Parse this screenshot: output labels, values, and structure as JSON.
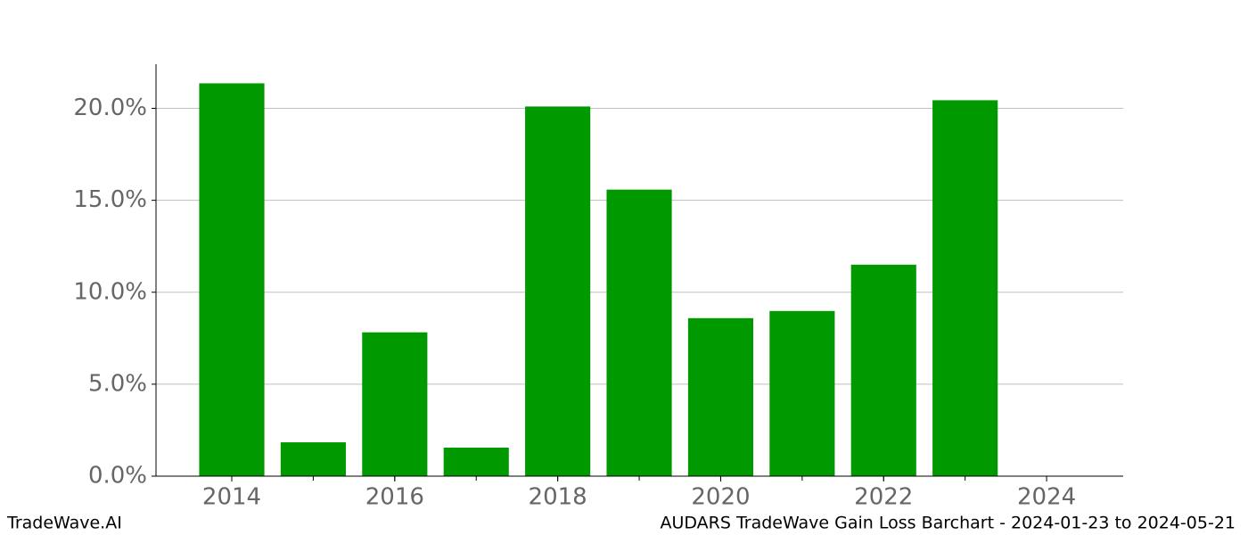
{
  "chart_data": {
    "type": "bar",
    "footer_left": "TradeWave.AI",
    "footer_right": "AUDARS TradeWave Gain Loss Barchart - 2024-01-23 to 2024-05-21",
    "x": [
      2014,
      2015,
      2016,
      2017,
      2018,
      2019,
      2020,
      2021,
      2022,
      2023
    ],
    "values": [
      21.36,
      1.84,
      7.82,
      1.55,
      20.1,
      15.58,
      8.59,
      8.98,
      11.5,
      20.44
    ],
    "color": "#009900",
    "xlim": [
      2013.07,
      2024.94
    ],
    "xticks": [
      2014,
      2016,
      2018,
      2020,
      2022,
      2024
    ],
    "ylim": [
      0,
      22.4
    ],
    "yticks": [
      {
        "value": 0,
        "label": "0.0%"
      },
      {
        "value": 5,
        "label": "5.0%"
      },
      {
        "value": 10,
        "label": "10.0%"
      },
      {
        "value": 15,
        "label": "15.0%"
      },
      {
        "value": 20,
        "label": "20.0%"
      }
    ],
    "grid": true
  }
}
